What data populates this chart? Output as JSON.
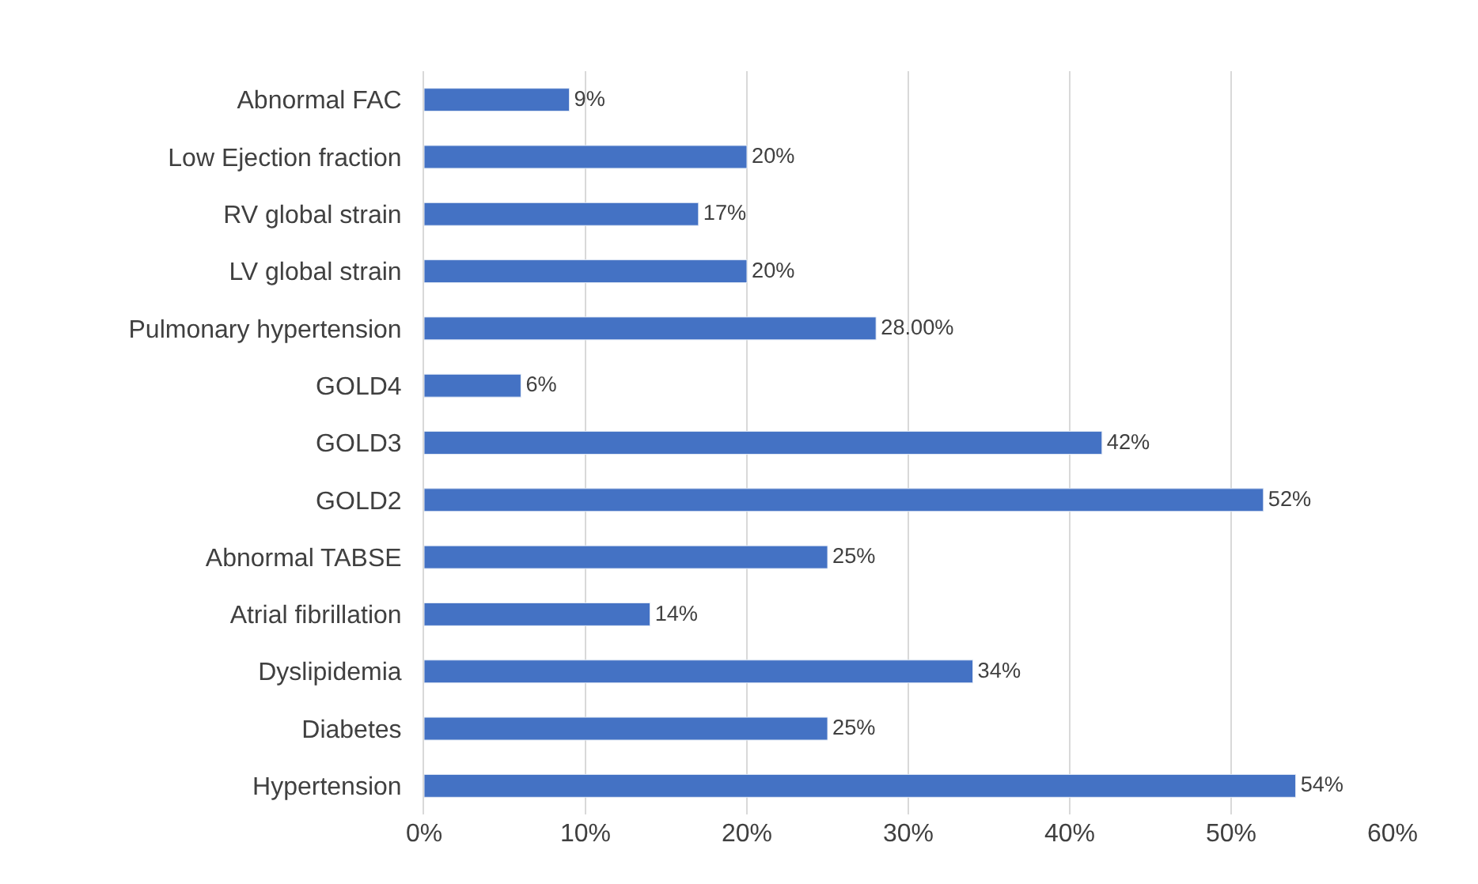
{
  "chart_data": {
    "type": "bar",
    "orientation": "horizontal",
    "categories": [
      "Abnormal FAC",
      "Low Ejection fraction",
      "RV global strain",
      "LV global strain",
      "Pulmonary hypertension",
      "GOLD4",
      "GOLD3",
      "GOLD2",
      "Abnormal TABSE",
      "Atrial fibrillation",
      "Dyslipidemia",
      "Diabetes",
      "Hypertension"
    ],
    "values": [
      9,
      20,
      17,
      20,
      28,
      6,
      42,
      52,
      25,
      14,
      34,
      25,
      54
    ],
    "value_labels": [
      "9%",
      "20%",
      "17%",
      "20%",
      "28.00%",
      "6%",
      "42%",
      "52%",
      "25%",
      "14%",
      "34%",
      "25%",
      "54%"
    ],
    "color": "#4472c4",
    "xlim": [
      0,
      60
    ],
    "xticks": [
      {
        "value": 0,
        "label": "0%"
      },
      {
        "value": 10,
        "label": "10%"
      },
      {
        "value": 20,
        "label": "20%"
      },
      {
        "value": 30,
        "label": "30%"
      },
      {
        "value": 40,
        "label": "40%"
      },
      {
        "value": 50,
        "label": "50%"
      },
      {
        "value": 60,
        "label": "60%"
      }
    ],
    "grid": "x",
    "legend": false
  }
}
